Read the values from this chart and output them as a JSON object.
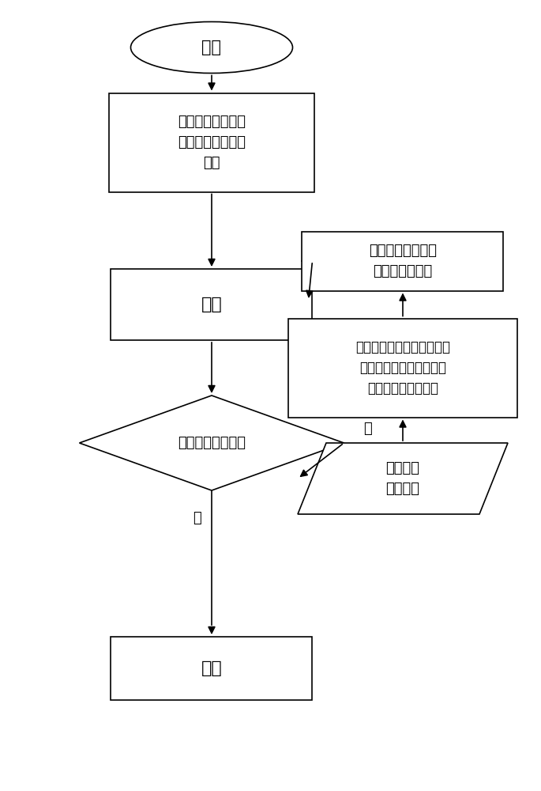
{
  "bg_color": "#ffffff",
  "line_color": "#000000",
  "text_color": "#000000",
  "font_size": 13,
  "start_text": "开始",
  "box1_text": "打开标定控制程序\n并且加载初始标定\n文件",
  "print_text": "打印",
  "diamond_text": "判断是否需要校准",
  "end_text": "结束",
  "para_text": "输出实际\n偏差文件",
  "box2_text": "将初始标定文件和实际偏差\n文件共同输入标定计算程\n序，得出新标定文件",
  "box3_text": "将新标定文件加载\n至标定控制程序",
  "yes_label": "是",
  "no_label": "否"
}
